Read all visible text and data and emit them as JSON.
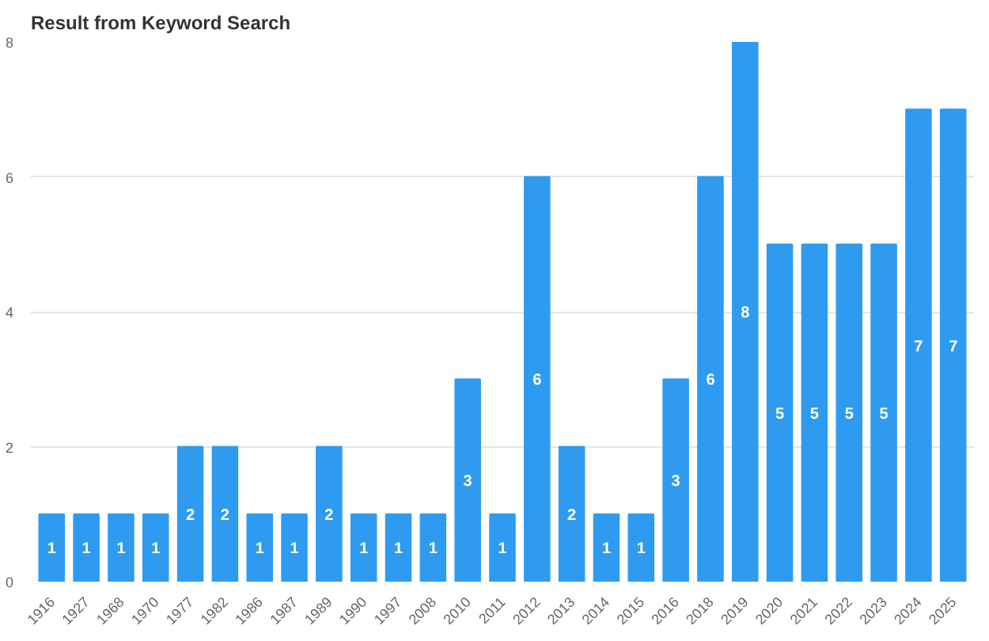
{
  "chart_data": {
    "type": "bar",
    "title": "Result from Keyword Search",
    "categories": [
      "1916",
      "1927",
      "1968",
      "1970",
      "1977",
      "1982",
      "1986",
      "1987",
      "1989",
      "1990",
      "1997",
      "2008",
      "2010",
      "2011",
      "2012",
      "2013",
      "2014",
      "2015",
      "2016",
      "2018",
      "2019",
      "2020",
      "2021",
      "2022",
      "2023",
      "2024",
      "2025"
    ],
    "values": [
      1,
      1,
      1,
      1,
      2,
      2,
      1,
      1,
      2,
      1,
      1,
      1,
      3,
      1,
      6,
      2,
      1,
      1,
      3,
      6,
      8,
      5,
      5,
      5,
      5,
      7,
      7
    ],
    "color": "#2f9bf0",
    "ylim": [
      0,
      8
    ],
    "yticks": [
      0,
      2,
      4,
      6,
      8
    ],
    "grid": "y",
    "data_labels": true
  }
}
